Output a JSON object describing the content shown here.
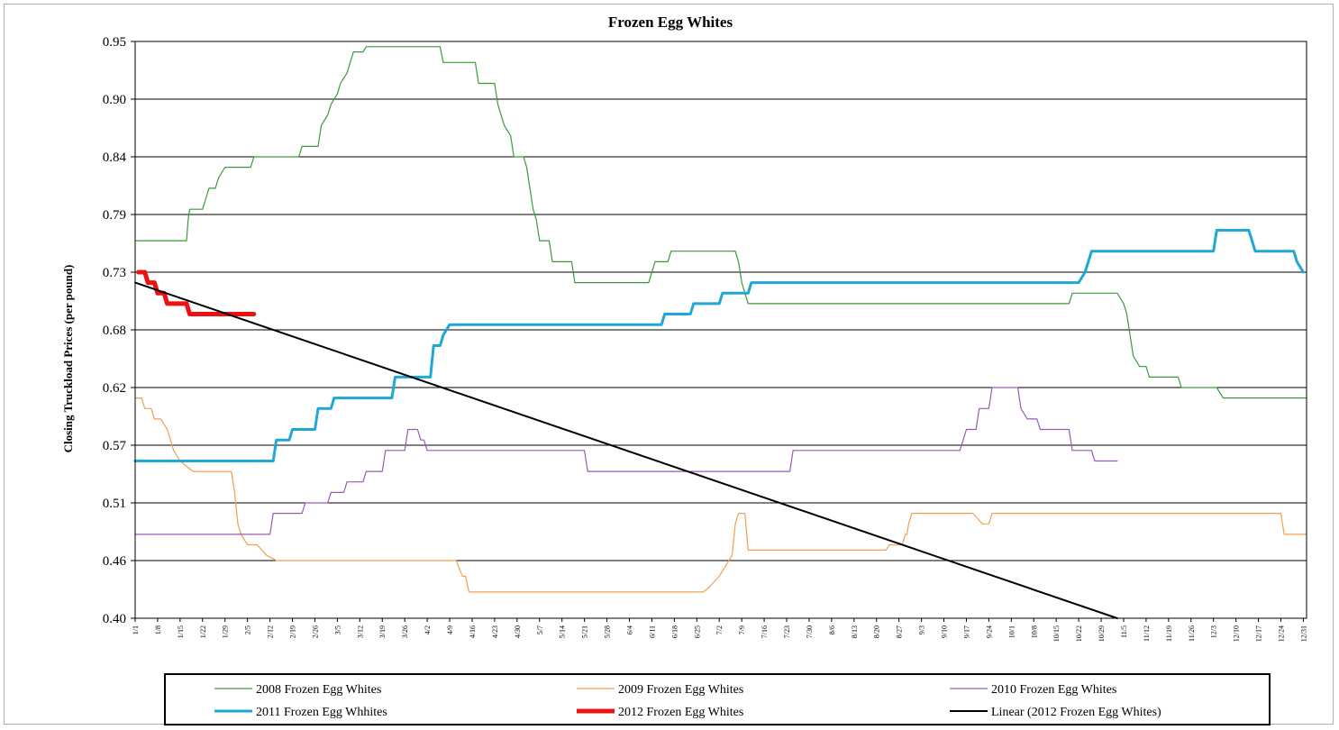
{
  "chart_data": {
    "type": "line",
    "title": "Frozen Egg Whites",
    "xlabel": "",
    "ylabel": "Closing Truckload Prices (per pound)",
    "yticks": [
      "0.40",
      "0.46",
      "0.51",
      "0.57",
      "0.62",
      "0.68",
      "0.73",
      "0.79",
      "0.84",
      "0.90",
      "0.95"
    ],
    "ylim": [
      0.4,
      0.95
    ],
    "xlim": [
      0,
      365
    ],
    "grid": "horizontal",
    "legend_position": "bottom",
    "xticks": [
      {
        "d": 0,
        "label": "1/1"
      },
      {
        "d": 7,
        "label": "1/8"
      },
      {
        "d": 14,
        "label": "1/15"
      },
      {
        "d": 21,
        "label": "1/22"
      },
      {
        "d": 28,
        "label": "1/29"
      },
      {
        "d": 35,
        "label": "2/5"
      },
      {
        "d": 42,
        "label": "2/12"
      },
      {
        "d": 49,
        "label": "2/19"
      },
      {
        "d": 56,
        "label": "2/26"
      },
      {
        "d": 63,
        "label": "3/5"
      },
      {
        "d": 70,
        "label": "3/12"
      },
      {
        "d": 77,
        "label": "3/19"
      },
      {
        "d": 84,
        "label": "3/26"
      },
      {
        "d": 91,
        "label": "4/2"
      },
      {
        "d": 98,
        "label": "4/9"
      },
      {
        "d": 105,
        "label": "4/16"
      },
      {
        "d": 112,
        "label": "4/23"
      },
      {
        "d": 119,
        "label": "4/30"
      },
      {
        "d": 126,
        "label": "5/7"
      },
      {
        "d": 133,
        "label": "5/14"
      },
      {
        "d": 140,
        "label": "5/21"
      },
      {
        "d": 147,
        "label": "5/28"
      },
      {
        "d": 154,
        "label": "6/4"
      },
      {
        "d": 161,
        "label": "6/11"
      },
      {
        "d": 168,
        "label": "6/18"
      },
      {
        "d": 175,
        "label": "6/25"
      },
      {
        "d": 182,
        "label": "7/2"
      },
      {
        "d": 189,
        "label": "7/9"
      },
      {
        "d": 196,
        "label": "7/16"
      },
      {
        "d": 203,
        "label": "7/23"
      },
      {
        "d": 210,
        "label": "7/30"
      },
      {
        "d": 217,
        "label": "8/6"
      },
      {
        "d": 224,
        "label": "8/13"
      },
      {
        "d": 231,
        "label": "8/20"
      },
      {
        "d": 238,
        "label": "8/27"
      },
      {
        "d": 245,
        "label": "9/3"
      },
      {
        "d": 252,
        "label": "9/10"
      },
      {
        "d": 259,
        "label": "9/17"
      },
      {
        "d": 266,
        "label": "9/24"
      },
      {
        "d": 273,
        "label": "10/1"
      },
      {
        "d": 280,
        "label": "10/8"
      },
      {
        "d": 287,
        "label": "10/15"
      },
      {
        "d": 294,
        "label": "10/22"
      },
      {
        "d": 301,
        "label": "10/29"
      },
      {
        "d": 308,
        "label": "11/5"
      },
      {
        "d": 315,
        "label": "11/12"
      },
      {
        "d": 322,
        "label": "11/19"
      },
      {
        "d": 329,
        "label": "11/26"
      },
      {
        "d": 336,
        "label": "12/3"
      },
      {
        "d": 343,
        "label": "12/10"
      },
      {
        "d": 350,
        "label": "12/17"
      },
      {
        "d": 357,
        "label": "12/24"
      },
      {
        "d": 364,
        "label": "12/31"
      }
    ],
    "series": [
      {
        "name": "2008 Frozen Egg Whites",
        "color": "#3a9a3a",
        "width": 1.2,
        "points": [
          [
            0,
            0.76
          ],
          [
            16,
            0.76
          ],
          [
            16.5,
            0.78
          ],
          [
            17,
            0.79
          ],
          [
            21,
            0.79
          ],
          [
            22,
            0.8
          ],
          [
            23,
            0.81
          ],
          [
            25,
            0.81
          ],
          [
            26,
            0.82
          ],
          [
            28,
            0.83
          ],
          [
            36,
            0.83
          ],
          [
            37,
            0.84
          ],
          [
            51,
            0.84
          ],
          [
            52,
            0.85
          ],
          [
            57,
            0.85
          ],
          [
            58,
            0.87
          ],
          [
            60,
            0.88
          ],
          [
            61,
            0.89
          ],
          [
            63,
            0.9
          ],
          [
            64,
            0.91
          ],
          [
            66,
            0.92
          ],
          [
            67,
            0.93
          ],
          [
            68,
            0.94
          ],
          [
            71,
            0.94
          ],
          [
            72,
            0.945
          ],
          [
            95,
            0.945
          ],
          [
            96,
            0.93
          ],
          [
            106,
            0.93
          ],
          [
            107,
            0.91
          ],
          [
            112,
            0.91
          ],
          [
            113,
            0.89
          ],
          [
            115,
            0.87
          ],
          [
            117,
            0.86
          ],
          [
            118,
            0.84
          ],
          [
            121,
            0.84
          ],
          [
            122,
            0.83
          ],
          [
            123,
            0.81
          ],
          [
            124,
            0.79
          ],
          [
            125,
            0.78
          ],
          [
            126,
            0.76
          ],
          [
            129,
            0.76
          ],
          [
            130,
            0.74
          ],
          [
            136,
            0.74
          ],
          [
            137,
            0.72
          ],
          [
            160,
            0.72
          ],
          [
            162,
            0.74
          ],
          [
            166,
            0.74
          ],
          [
            167,
            0.75
          ],
          [
            187,
            0.75
          ],
          [
            188,
            0.74
          ],
          [
            189,
            0.72
          ],
          [
            190,
            0.71
          ],
          [
            191,
            0.7
          ],
          [
            291,
            0.7
          ],
          [
            292,
            0.71
          ],
          [
            306,
            0.71
          ],
          [
            308,
            0.7
          ],
          [
            309,
            0.69
          ],
          [
            310,
            0.67
          ],
          [
            311,
            0.65
          ],
          [
            313,
            0.64
          ],
          [
            315,
            0.64
          ],
          [
            316,
            0.63
          ],
          [
            325,
            0.63
          ],
          [
            326,
            0.62
          ],
          [
            337,
            0.62
          ],
          [
            339,
            0.61
          ],
          [
            365,
            0.61
          ]
        ]
      },
      {
        "name": "2009 Frozen Egg Whites",
        "color": "#f0a050",
        "width": 1.2,
        "points": [
          [
            0,
            0.61
          ],
          [
            2,
            0.61
          ],
          [
            3,
            0.6
          ],
          [
            5,
            0.6
          ],
          [
            6,
            0.59
          ],
          [
            8,
            0.59
          ],
          [
            10,
            0.58
          ],
          [
            11,
            0.57
          ],
          [
            12,
            0.56
          ],
          [
            14,
            0.55
          ],
          [
            18,
            0.54
          ],
          [
            30,
            0.54
          ],
          [
            31,
            0.52
          ],
          [
            32,
            0.49
          ],
          [
            33,
            0.48
          ],
          [
            35,
            0.47
          ],
          [
            38,
            0.47
          ],
          [
            41,
            0.46
          ],
          [
            44,
            0.455
          ],
          [
            100,
            0.455
          ],
          [
            102,
            0.44
          ],
          [
            103,
            0.44
          ],
          [
            104,
            0.425
          ],
          [
            177,
            0.425
          ],
          [
            179,
            0.43
          ],
          [
            182,
            0.44
          ],
          [
            184,
            0.45
          ],
          [
            186,
            0.46
          ],
          [
            187,
            0.49
          ],
          [
            188,
            0.5
          ],
          [
            190,
            0.5
          ],
          [
            191,
            0.465
          ],
          [
            234,
            0.465
          ],
          [
            235,
            0.47
          ],
          [
            239,
            0.47
          ],
          [
            240,
            0.48
          ],
          [
            240.5,
            0.48
          ],
          [
            241,
            0.49
          ],
          [
            242,
            0.5
          ],
          [
            261,
            0.5
          ],
          [
            264,
            0.49
          ],
          [
            266,
            0.49
          ],
          [
            267,
            0.5
          ],
          [
            357,
            0.5
          ],
          [
            358,
            0.48
          ],
          [
            365,
            0.48
          ]
        ]
      },
      {
        "name": "2010 Frozen Egg Whites",
        "color": "#9b59b6",
        "width": 1.2,
        "points": [
          [
            0,
            0.48
          ],
          [
            42,
            0.48
          ],
          [
            43,
            0.5
          ],
          [
            52,
            0.5
          ],
          [
            53,
            0.51
          ],
          [
            60,
            0.51
          ],
          [
            61,
            0.52
          ],
          [
            65,
            0.52
          ],
          [
            66,
            0.53
          ],
          [
            71,
            0.53
          ],
          [
            72,
            0.54
          ],
          [
            77,
            0.54
          ],
          [
            78,
            0.56
          ],
          [
            84,
            0.56
          ],
          [
            85,
            0.58
          ],
          [
            88,
            0.58
          ],
          [
            89,
            0.57
          ],
          [
            90,
            0.57
          ],
          [
            91,
            0.56
          ],
          [
            140,
            0.56
          ],
          [
            141,
            0.54
          ],
          [
            204,
            0.54
          ],
          [
            205,
            0.56
          ],
          [
            257,
            0.56
          ],
          [
            258,
            0.57
          ],
          [
            259,
            0.58
          ],
          [
            262,
            0.58
          ],
          [
            263,
            0.6
          ],
          [
            266,
            0.6
          ],
          [
            267,
            0.62
          ],
          [
            275,
            0.62
          ],
          [
            276,
            0.6
          ],
          [
            278,
            0.59
          ],
          [
            281,
            0.59
          ],
          [
            282,
            0.58
          ],
          [
            291,
            0.58
          ],
          [
            292,
            0.56
          ],
          [
            298,
            0.56
          ],
          [
            299,
            0.55
          ],
          [
            306,
            0.55
          ]
        ]
      },
      {
        "name": "2011 Frozen Egg Whhites",
        "color": "#1fa7d6",
        "width": 3,
        "points": [
          [
            0,
            0.55
          ],
          [
            43,
            0.55
          ],
          [
            44,
            0.57
          ],
          [
            48,
            0.57
          ],
          [
            49,
            0.58
          ],
          [
            56,
            0.58
          ],
          [
            57,
            0.6
          ],
          [
            61,
            0.6
          ],
          [
            62,
            0.61
          ],
          [
            80,
            0.61
          ],
          [
            81,
            0.63
          ],
          [
            92,
            0.63
          ],
          [
            93,
            0.66
          ],
          [
            95,
            0.66
          ],
          [
            96,
            0.67
          ],
          [
            98,
            0.68
          ],
          [
            164,
            0.68
          ],
          [
            165,
            0.69
          ],
          [
            173,
            0.69
          ],
          [
            174,
            0.7
          ],
          [
            182,
            0.7
          ],
          [
            183,
            0.71
          ],
          [
            191,
            0.71
          ],
          [
            192,
            0.72
          ],
          [
            294,
            0.72
          ],
          [
            296,
            0.73
          ],
          [
            298,
            0.75
          ],
          [
            336,
            0.75
          ],
          [
            337,
            0.77
          ],
          [
            347,
            0.77
          ],
          [
            349,
            0.75
          ],
          [
            361,
            0.75
          ],
          [
            362,
            0.74
          ],
          [
            364,
            0.73
          ]
        ]
      },
      {
        "name": "2012 Frozen Egg Whites",
        "color": "#ee1111",
        "width": 5,
        "points": [
          [
            1,
            0.73
          ],
          [
            3,
            0.73
          ],
          [
            4,
            0.72
          ],
          [
            6,
            0.72
          ],
          [
            7,
            0.71
          ],
          [
            9,
            0.71
          ],
          [
            10,
            0.7
          ],
          [
            16,
            0.7
          ],
          [
            17,
            0.69
          ],
          [
            37,
            0.69
          ]
        ]
      },
      {
        "name": "Linear (2012 Frozen Egg Whites)",
        "color": "#000000",
        "width": 2,
        "points": [
          [
            0,
            0.72
          ],
          [
            306,
            0.4
          ]
        ]
      }
    ]
  }
}
